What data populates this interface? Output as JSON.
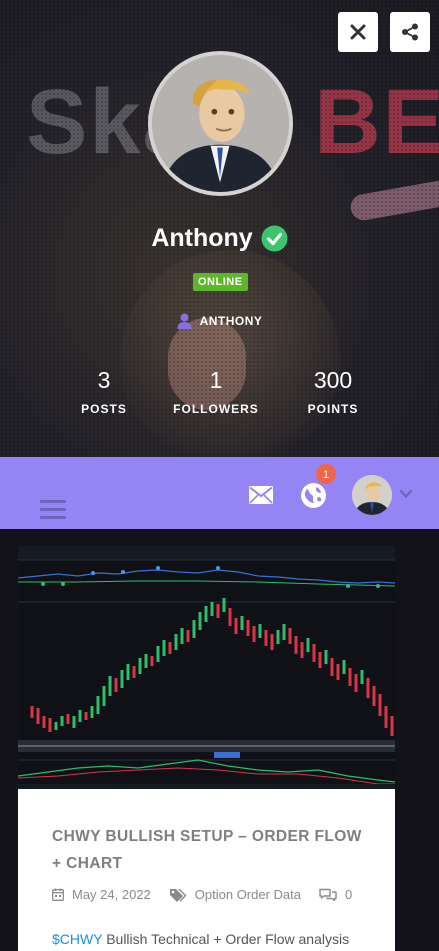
{
  "profile": {
    "banner_text_left": "Sk",
    "banner_text_mid": "ary ",
    "banner_text_right": "BE",
    "name": "Anthony",
    "status": "ONLINE",
    "role": "ANTHONY",
    "stats": [
      {
        "value": "3",
        "label": "POSTS"
      },
      {
        "value": "1",
        "label": "FOLLOWERS"
      },
      {
        "value": "300",
        "label": "POINTS"
      }
    ]
  },
  "icons": {
    "close": "close-icon",
    "share": "share-icon",
    "verified": "check-circle-icon",
    "role": "user-icon",
    "menu": "hamburger-icon",
    "mail": "envelope-icon",
    "notifications": "globe-icon",
    "account_menu": "chevron-down-icon",
    "date": "calendar-icon",
    "category": "tags-icon",
    "comments": "comments-icon"
  },
  "toolbar": {
    "notification_count": "1"
  },
  "post": {
    "title": "CHWY BULLISH SETUP – ORDER FLOW + CHART",
    "date": "May 24, 2022",
    "category": "Option Order Data",
    "comments": "0",
    "excerpt_ticker": "$CHWY",
    "excerpt_text": " Bullish Technical + Order Flow analysis"
  },
  "colors": {
    "toolbar": "#9484f4",
    "online_badge": "#5cb82a",
    "verified": "#3ec46d",
    "notification_badge": "#f06548",
    "link": "#1a8fd6"
  }
}
